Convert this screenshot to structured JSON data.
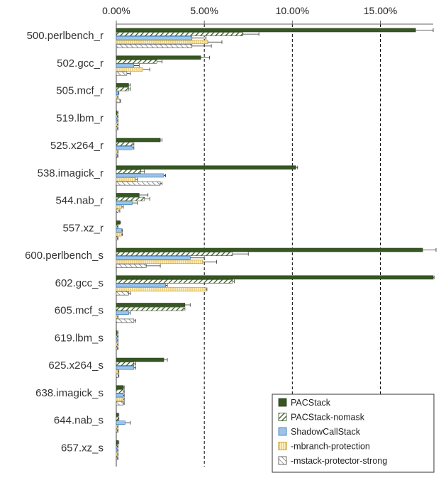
{
  "chart_data": {
    "type": "bar",
    "orientation": "horizontal",
    "categories": [
      "500.perlbench_r",
      "502.gcc_r",
      "505.mcf_r",
      "519.lbm_r",
      "525.x264_r",
      "538.imagick_r",
      "544.nab_r",
      "557.xz_r",
      "600.perlbench_s",
      "602.gcc_s",
      "605.mcf_s",
      "619.lbm_s",
      "625.x264_s",
      "638.imagick_s",
      "644.nab_s",
      "657.xz_s"
    ],
    "xlim": [
      0,
      18
    ],
    "xticks": [
      0,
      5,
      10,
      15
    ],
    "xtick_labels": [
      "0.00%",
      "5.00%",
      "10.00%",
      "15.00%"
    ],
    "grid": "dashed vertical at 5%, 10%, 15%",
    "legend_position": "bottom-right",
    "error_bars": true,
    "series": [
      {
        "name": "PACStack",
        "color": "#375623",
        "pattern": "solid",
        "values": [
          17.0,
          4.8,
          0.7,
          0.05,
          2.5,
          10.2,
          1.3,
          0.2,
          17.4,
          18.0,
          3.9,
          0.05,
          2.7,
          0.4,
          0.1,
          0.1
        ],
        "errors": [
          1.0,
          0.5,
          0.1,
          0.05,
          0.1,
          0.1,
          0.5,
          0.05,
          0.8,
          0.05,
          0.3,
          0.05,
          0.2,
          0.05,
          0.05,
          0.05
        ]
      },
      {
        "name": "PACStack-nomask",
        "color": "#70ad47",
        "pattern": "diagonal",
        "values": [
          7.2,
          2.3,
          0.7,
          0.05,
          0.9,
          1.4,
          1.6,
          0.05,
          6.6,
          6.6,
          3.8,
          0.05,
          1.0,
          0.4,
          0.1,
          0.05
        ],
        "errors": [
          0.9,
          0.3,
          0.1,
          0.05,
          0.1,
          0.2,
          0.3,
          0.05,
          0.9,
          0.1,
          0.1,
          0.05,
          0.1,
          0.05,
          0.05,
          0.05
        ]
      },
      {
        "name": "ShadowCallStack",
        "color": "#9dc3e6",
        "pattern": "solid",
        "values": [
          4.3,
          1.0,
          0.1,
          0.05,
          0.9,
          2.7,
          0.9,
          0.3,
          4.2,
          2.8,
          0.7,
          0.05,
          1.0,
          0.4,
          0.5,
          0.05
        ],
        "errors": [
          0.8,
          0.3,
          0.05,
          0.05,
          0.1,
          0.1,
          0.3,
          0.05,
          0.8,
          0.1,
          0.1,
          0.05,
          0.1,
          0.05,
          0.3,
          0.05
        ]
      },
      {
        "name": "-mbranch-protection",
        "color": "#ffe699",
        "pattern": "vertical",
        "values": [
          5.2,
          1.5,
          0.05,
          0.05,
          0.05,
          1.1,
          0.3,
          0.3,
          4.9,
          5.1,
          0.05,
          0.05,
          0.1,
          0.4,
          0.05,
          0.05
        ],
        "errors": [
          0.8,
          0.4,
          0.05,
          0.05,
          0.05,
          0.1,
          0.1,
          0.05,
          0.8,
          0.05,
          0.05,
          0.05,
          0.05,
          0.05,
          0.05,
          0.05
        ]
      },
      {
        "name": "-mstack-protector-strong",
        "color": "#ffffff",
        "pattern": "diagonal-back",
        "values": [
          4.3,
          0.6,
          0.2,
          0.05,
          0.05,
          2.5,
          0.1,
          0.05,
          1.7,
          0.7,
          1.0,
          0.05,
          0.1,
          0.4,
          0.05,
          0.05
        ],
        "errors": [
          1.1,
          0.2,
          0.05,
          0.05,
          0.05,
          0.1,
          0.1,
          0.05,
          0.8,
          0.1,
          0.1,
          0.05,
          0.05,
          0.05,
          0.05,
          0.05
        ]
      }
    ]
  }
}
